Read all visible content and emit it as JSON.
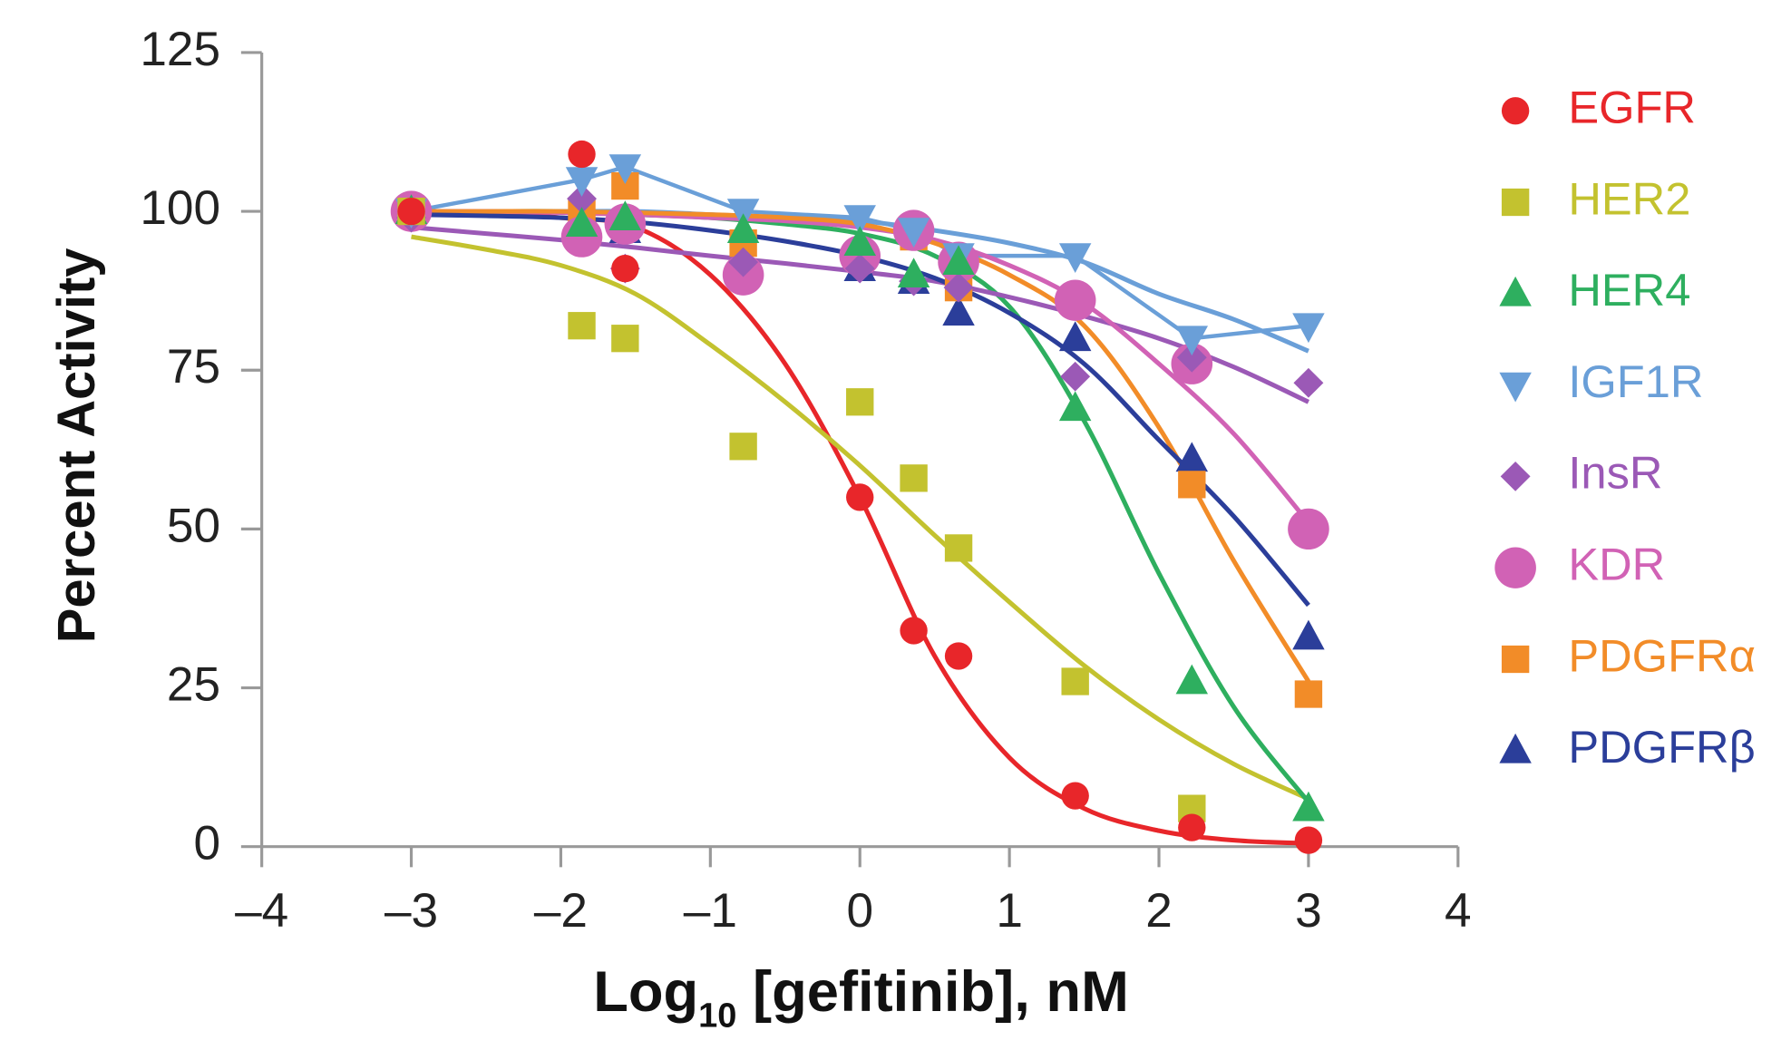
{
  "chart_data": {
    "type": "scatter",
    "x_label": {
      "main": "Log",
      "sub": "10",
      "rest": " [gefitinib], nM"
    },
    "y_label": "Percent Activity",
    "xlim": [
      -4,
      4
    ],
    "ylim": [
      0,
      125
    ],
    "xticks": [
      {
        "value": -4,
        "label": "–4"
      },
      {
        "value": -3,
        "label": "–3"
      },
      {
        "value": -2,
        "label": "–2"
      },
      {
        "value": -1,
        "label": "–1"
      },
      0,
      1,
      2,
      3,
      4
    ],
    "yticks": [
      0,
      25,
      50,
      75,
      100,
      125
    ],
    "fit_x": [
      -3,
      -2.5,
      -2,
      -1.5,
      -1,
      -0.5,
      0,
      0.5,
      1,
      1.5,
      2,
      2.5,
      3
    ],
    "series": [
      {
        "name": "EGFR",
        "color": "#e8262a",
        "marker": "circle",
        "x": [
          -3,
          -1.86,
          -1.57,
          0,
          0.36,
          0.66,
          1.44,
          2.22,
          3
        ],
        "values": [
          100,
          109,
          91,
          55,
          34,
          30,
          8,
          3,
          1
        ],
        "fit": [
          100,
          99.8,
          99,
          97.5,
          90,
          76,
          55,
          30,
          14,
          6,
          2.5,
          1,
          0.5
        ]
      },
      {
        "name": "HER2",
        "color": "#c3c22f",
        "marker": "square",
        "x": [
          -3,
          -1.86,
          -1.57,
          -0.78,
          0,
          0.36,
          0.66,
          1.44,
          2.22
        ],
        "values": [
          100,
          82,
          80,
          63,
          70,
          58,
          47,
          26,
          6
        ],
        "fit": [
          96,
          94,
          91.5,
          87,
          79,
          70,
          60,
          49,
          38.5,
          28.5,
          20,
          13,
          7.5
        ]
      },
      {
        "name": "HER4",
        "color": "#2eaf5f",
        "marker": "triangle",
        "x": [
          -3,
          -1.86,
          -1.57,
          -0.78,
          0,
          0.36,
          0.66,
          1.44,
          2.22,
          3
        ],
        "values": [
          100,
          98,
          99,
          97,
          95,
          90,
          92,
          69,
          26,
          6
        ],
        "fit": [
          100,
          100,
          100,
          99.5,
          99,
          98,
          96.5,
          93,
          85,
          67,
          43,
          22,
          7
        ]
      },
      {
        "name": "IGF1R",
        "color": "#6a9fd8",
        "marker": "triangle-down",
        "connect": true,
        "x": [
          -3,
          -1.86,
          -1.57,
          -0.78,
          0,
          0.36,
          0.66,
          1.44,
          2.22,
          3
        ],
        "values": [
          100,
          105,
          107,
          100,
          99,
          97,
          93,
          93,
          80,
          82
        ],
        "fit": [
          100,
          100,
          100,
          100,
          99.5,
          99,
          98.5,
          97,
          95,
          92,
          87,
          83,
          78
        ]
      },
      {
        "name": "InsR",
        "color": "#9b59b6",
        "marker": "diamond",
        "x": [
          -3,
          -1.86,
          -1.57,
          -0.78,
          0,
          0.36,
          0.66,
          1.44,
          2.22,
          3
        ],
        "values": [
          99,
          102,
          91,
          92,
          91,
          89,
          88,
          74,
          77,
          73
        ],
        "fit": [
          97.5,
          96.5,
          95.5,
          94.3,
          93,
          91.8,
          90.5,
          89,
          86.5,
          83.5,
          80,
          75.5,
          70
        ]
      },
      {
        "name": "KDR",
        "color": "#d162b5",
        "marker": "circle-large",
        "x": [
          -3,
          -1.86,
          -1.57,
          -0.78,
          0,
          0.36,
          0.66,
          1.44,
          2.22,
          3
        ],
        "values": [
          100,
          96,
          98,
          90,
          93,
          97,
          92,
          86,
          76,
          50
        ],
        "fit": [
          100,
          100,
          99.8,
          99.5,
          99,
          98.5,
          97.5,
          95.5,
          91.5,
          85.5,
          76,
          65,
          51
        ]
      },
      {
        "name": "PDGFRα",
        "color": "#f28c28",
        "marker": "square",
        "x": [
          -3,
          -1.86,
          -1.57,
          -0.78,
          0,
          0.36,
          0.66,
          1.44,
          2.22,
          3
        ],
        "values": [
          100,
          100,
          104,
          95,
          93,
          96,
          88,
          86,
          57,
          24
        ],
        "fit": [
          100,
          100,
          100,
          99.8,
          99.5,
          99,
          98,
          95,
          90,
          82,
          66,
          45,
          26
        ]
      },
      {
        "name": "PDGFRβ",
        "color": "#2b3e9a",
        "marker": "triangle",
        "x": [
          -3,
          -1.86,
          -1.57,
          -0.78,
          0,
          0.36,
          0.66,
          1.44,
          2.22,
          3
        ],
        "values": [
          100,
          96,
          97,
          93,
          91,
          89,
          84,
          80,
          61,
          33
        ],
        "fit": [
          99.5,
          99.3,
          99,
          98.3,
          97,
          95.3,
          93,
          89.5,
          84,
          76,
          64,
          52,
          38
        ]
      }
    ]
  }
}
